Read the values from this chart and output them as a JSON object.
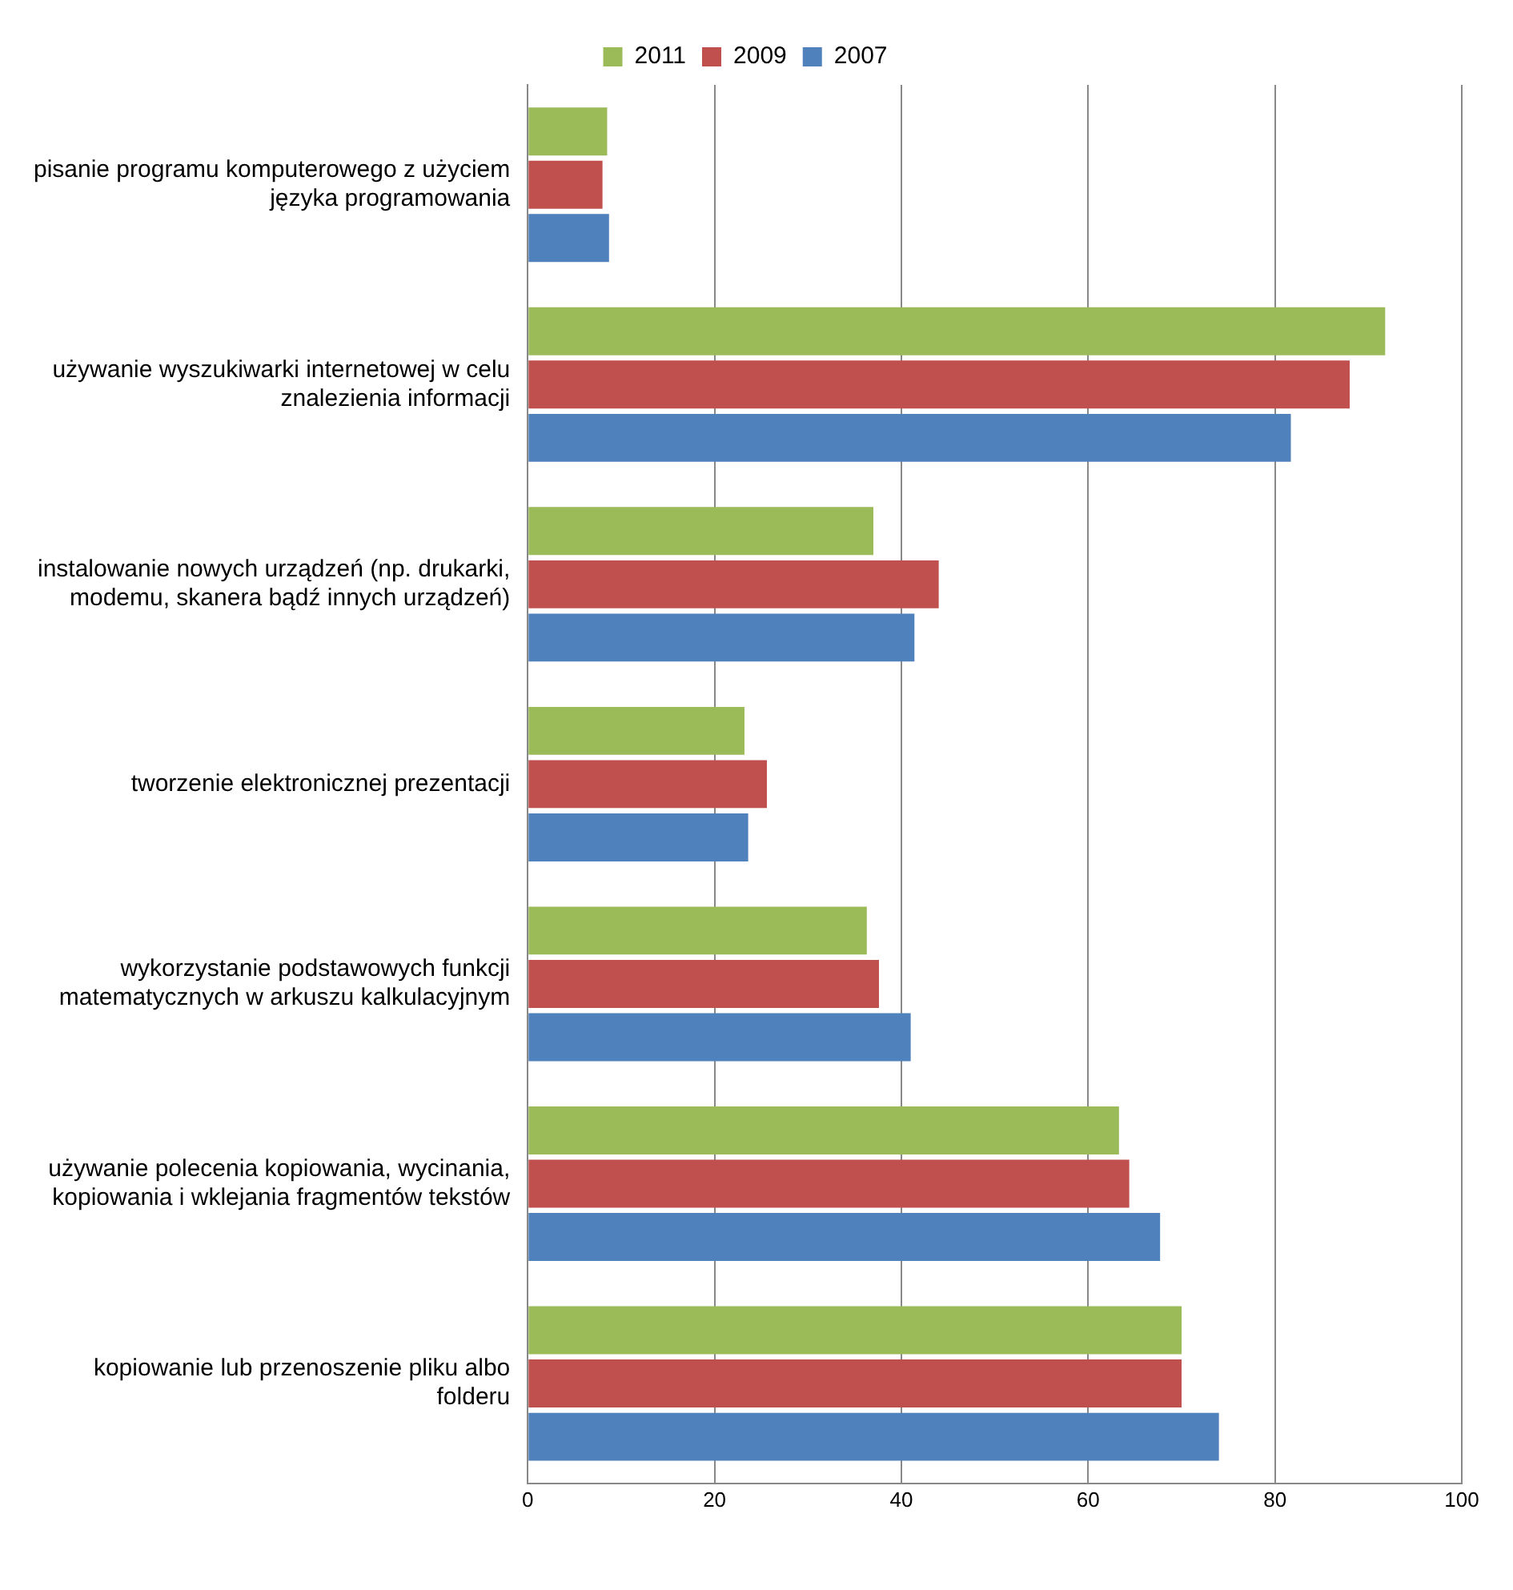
{
  "chart_data": {
    "type": "bar",
    "orientation": "horizontal",
    "categories": [
      "pisanie programu komputerowego z użyciem języka programowania",
      "używanie wyszukiwarki internetowej w celu znalezienia informacji",
      "instalowanie nowych urządzeń (np. drukarki, modemu, skanera bądź innych urządzeń)",
      "tworzenie elektronicznej prezentacji",
      "wykorzystanie podstawowych funkcji matematycznych w arkuszu kalkulacyjnym",
      "używanie polecenia kopiowania, wycinania, kopiowania i wklejania fragmentów tekstów",
      "kopiowanie lub przenoszenie pliku albo folderu"
    ],
    "series": [
      {
        "name": "2011",
        "color": "#9bbb59",
        "values": [
          8.5,
          91.8,
          37,
          23.2,
          36.3,
          63.3,
          70
        ]
      },
      {
        "name": "2009",
        "color": "#c0504d",
        "values": [
          8,
          88,
          44,
          25.6,
          37.6,
          64.4,
          70
        ]
      },
      {
        "name": "2007",
        "color": "#4f81bd",
        "values": [
          8.7,
          81.7,
          41.4,
          23.6,
          41,
          67.7,
          74
        ]
      }
    ],
    "xlim": [
      0,
      100
    ],
    "xticks": [
      0,
      20,
      40,
      60,
      80,
      100
    ],
    "grid": "x",
    "legend": "top"
  }
}
